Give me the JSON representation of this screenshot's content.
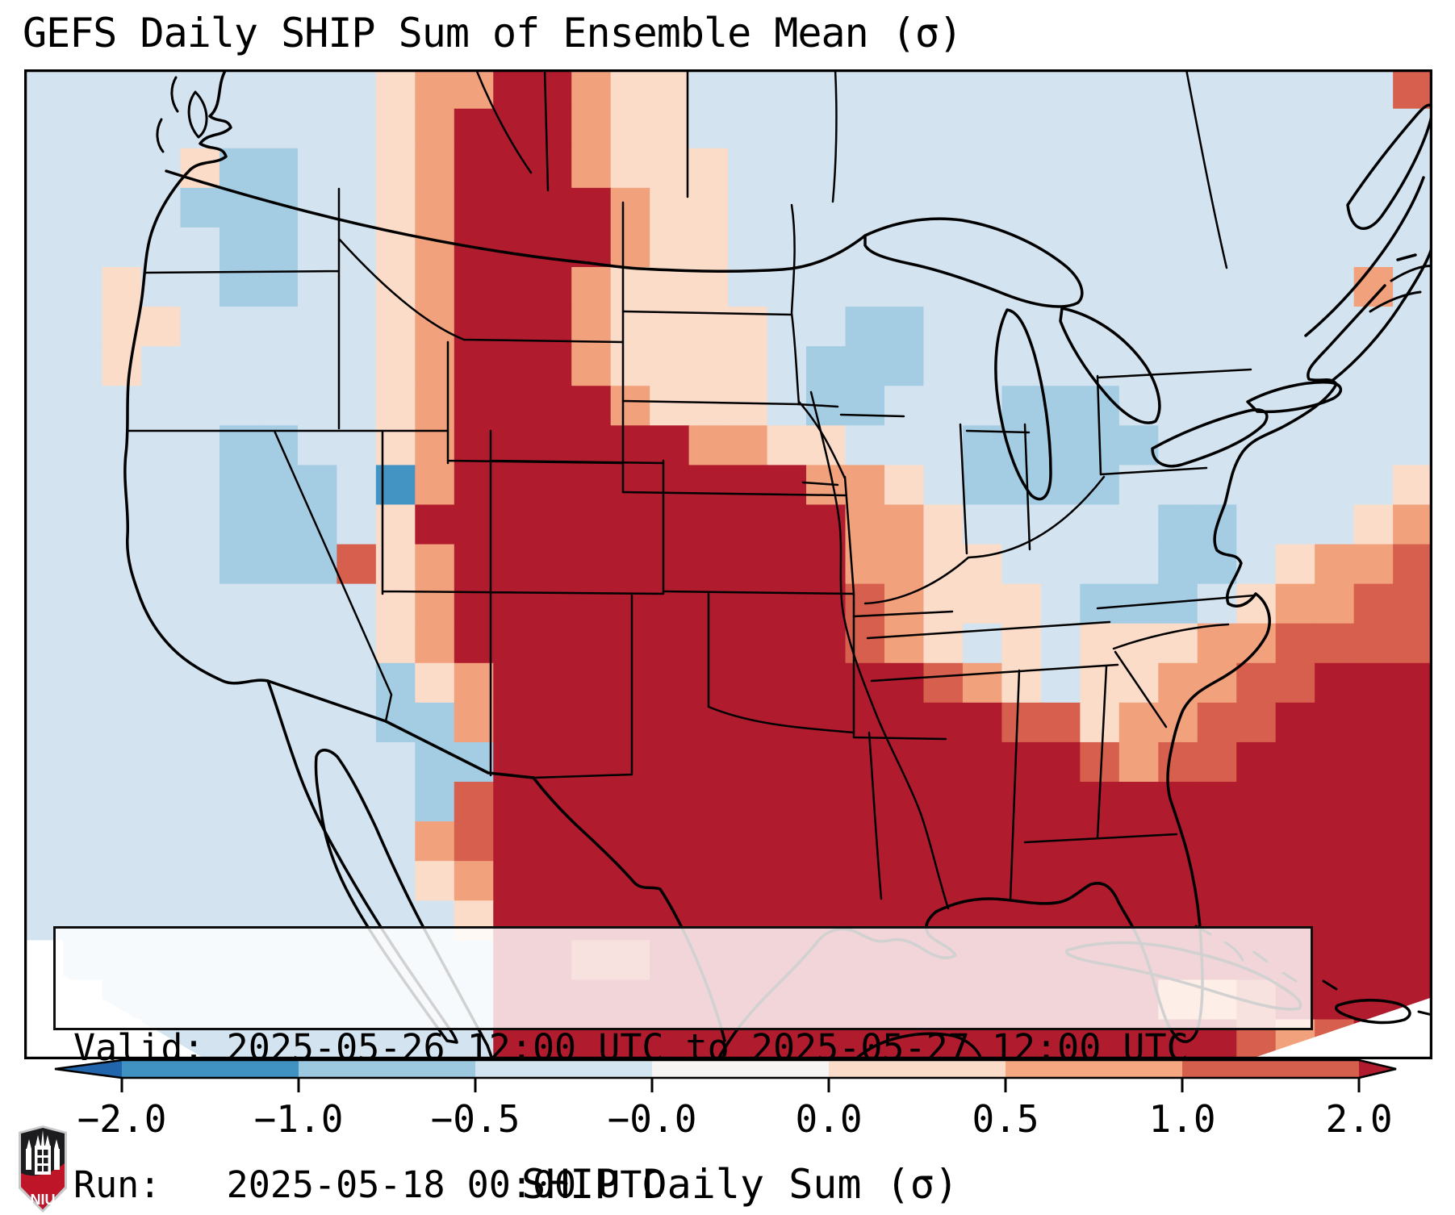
{
  "overlay_box": {
    "valid_line": "Valid: 2025-05-26 12:00 UTC to 2025-05-27 12:00 UTC",
    "run_line": "Run:   2025-05-18 00:00 UTC"
  },
  "logo": {
    "text": "NIU",
    "rim_color": "#c8c9cb",
    "shield_color": "#1c1c1f",
    "band_color": "#bf1528"
  },
  "chart_data": {
    "type": "heatmap",
    "title": "GEFS Daily SHIP Sum of Ensemble Mean (σ)",
    "valid": "2025-05-26 12:00 UTC to 2025-05-27 12:00 UTC",
    "run": "2025-05-18 00:00 UTC",
    "variable": "SHIP Daily Sum (σ)",
    "region": "Contiguous United States, southern Canada, Mexico, Gulf of Mexico and Caribbean",
    "colorbar": {
      "label": "SHIP Daily Sum (σ)",
      "orientation": "horizontal",
      "tick_labels": [
        "−2.0",
        "−1.0",
        "−0.5",
        "−0.0",
        "0.0",
        "0.5",
        "1.0",
        "2.0"
      ],
      "segment_colors": [
        "#4092c2",
        "#9cc8e0",
        "#d3e5f1",
        "#f6f5f4",
        "#fbdcc8",
        "#f4a780",
        "#d45f4c"
      ],
      "extend_min_color": "#2166ac",
      "extend_max_color": "#b01b2d"
    },
    "grid": {
      "cols": 36,
      "palette": {
        ".": "#d3e4f0",
        "b": "#a4cce3",
        "B": "#4393c3",
        "p": "#fadcc8",
        "o": "#f2a17d",
        "r": "#d65f4d",
        "R": "#b01b2d",
        "w": "#f7f7f7",
        "W": "#ffffff"
      },
      "legend": {
        ".": "-0.5 to -0.0 σ (pale blue)",
        "b": "-1.0 to -0.5 σ",
        "B": "-2.0 to -1.0 σ",
        "p": "0.0 to 0.5 σ",
        "o": "0.5 to 1.0 σ",
        "r": "1.0 to 2.0 σ",
        "R": "above 2.0 σ",
        "w": "near 0 σ",
        "W": "outside map domain"
      },
      "rows": [
        ".........pooRRopp..................r",
        ".........poRRRopp...................",
        "....pbb..poRRRoppp..................",
        "....bbb..poRRRRopp..................",
        ".....bb..poRRRRopp..................",
        "..p..bb..poRRRoppp................o.",
        "..pp.....poRRRopppp..bb.............",
        "..p......poRRRopppp.bbb.............",
        ".........poRRRRoppp.bb...bbb........",
        ".....bb..poRRRRRRoopp...bbbbb.......",
        ".....bbb.BoRRRRRRRRRoop.bbbb.......p",
        ".....bbb.pRRRRRRRRRRRoop.....bb...po",
        ".....bbbrpoRRRRRRRRRRoopp....bb.poor",
        ".........poRRRRRRRRRRroppp.bbb.poorr",
        ".........poRRRRRRRRRRrop.p.pppoorrrr",
        ".........bpoRRRRRRRRRRRrop.ppoorrRRR",
        ".........bboRRRRRRRRRRRRRrrpoorrRRRR",
        "..........bbRRRRRRRRRRRRRRRrorrRRRRR",
        "..........brRRRRRRRRRRRRRRRRRRRRRRRR",
        "..........orRRRRRRRRRRRRRRRRRRRRRRRR",
        "..........poRRRRRRRRRRRRRRRRRRRRRRRR",
        "...........pRRRRRRRRRRRRRRRRRRRRRRRR",
        "W...........RRrrRRRRRRRRRRRRRRRRRRRR",
        "WW..........RRRRRRRRRRRRRRRRRoorRRRR",
        "WWW.........RRRRRRRRRRRRRRRRRRRrorRW"
      ]
    }
  }
}
